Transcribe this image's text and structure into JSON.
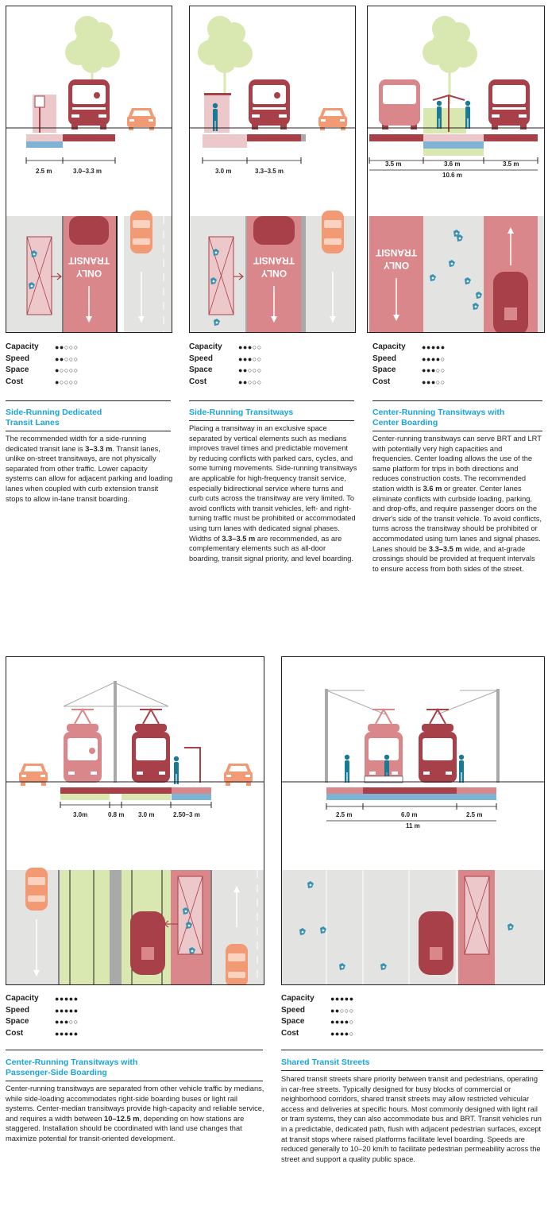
{
  "rating_labels": {
    "capacity": "Capacity",
    "speed": "Speed",
    "space": "Space",
    "cost": "Cost"
  },
  "sections": [
    {
      "title_line1": "Side-Running Dedicated",
      "title_line2": "Transit Lanes",
      "ratings": {
        "capacity": "●●○○○",
        "speed": "●●○○○",
        "space": "●○○○○",
        "cost": "●○○○○"
      },
      "dimensions": [
        "2.5 m",
        "3.0–3.3 m"
      ],
      "body_parts": [
        "The recommended width for a side-running dedicated transit lane is ",
        "3–3.3 m",
        ". Transit lanes, unlike on-street transitways, are not physically separated from other traffic. Lower capacity systems can allow for adjacent parking and loading lanes when coupled with curb extension transit stops to allow in-lane transit boarding."
      ],
      "lane_marking_line1": "TRANSIT",
      "lane_marking_line2": "ONLY"
    },
    {
      "title_line1": "Side-Running Transitways",
      "ratings": {
        "capacity": "●●●○○",
        "speed": "●●●○○",
        "space": "●●○○○",
        "cost": "●●○○○"
      },
      "dimensions": [
        "3.0 m",
        "3.3–3.5 m"
      ],
      "body_parts": [
        "Placing a transitway in an exclusive space separated by vertical elements such as medians improves travel times and predictable movement by reducing conflicts with parked cars, cycles, and some turning movements. Side-running transitways are applicable for high-frequency transit service, especially bidirectional service where turns and curb cuts across the transitway are very limited. To avoid conflicts with transit vehicles, left- and right-turning traffic must be prohibited or accommodated using turn lanes with dedicated signal phases. Widths of ",
        "3.3–3.5 m",
        " are recommended, as are complementary elements such as all-door boarding, transit signal priority, and level boarding."
      ],
      "lane_marking_line1": "TRANSIT",
      "lane_marking_line2": "ONLY"
    },
    {
      "title_line1": "Center-Running Transitways with",
      "title_line2": "Center Boarding",
      "ratings": {
        "capacity": "●●●●●",
        "speed": "●●●●○",
        "space": "●●●○○",
        "cost": "●●●○○"
      },
      "dimensions": [
        "3.5 m",
        "3.6 m",
        "3.5 m",
        "10.6 m"
      ],
      "body_parts": [
        "Center-running transitways can serve BRT and LRT with potentially very high capacities and frequencies. Center loading allows the use of the same platform for trips in both directions and reduces construction costs. The recommended station width is ",
        "3.6 m",
        " or greater. Center lanes eliminate conflicts with curbside loading, parking, and drop-offs, and require passenger doors on the driver's side of the transit vehicle. To avoid conflicts, turns across the transitway should be prohibited or accommodated using turn lanes and signal phases. Lanes should be ",
        "3.3–3.5 m",
        " wide, and at-grade crossings should be provided at frequent intervals to ensure access from both sides of the street."
      ],
      "lane_marking_line1": "TRANSIT",
      "lane_marking_line2": "ONLY"
    },
    {
      "title_line1": "Center-Running Transitways with",
      "title_line2": "Passenger-Side Boarding",
      "ratings": {
        "capacity": "●●●●●",
        "speed": "●●●●●",
        "space": "●●●○○",
        "cost": "●●●●●"
      },
      "dimensions": [
        "3.0m",
        "0.8 m",
        "3.0 m",
        "2.50–3 m"
      ],
      "body_parts": [
        "Center-running transitways are separated from other vehicle traffic by medians, while side-loading accommodates right-side boarding buses or light rail systems. Center-median transitways provide high-capacity and reliable service, and requires a width between ",
        "10–12.5 m",
        ", depending on how stations are staggered. Installation should be coordinated with land use changes that maximize potential for transit-oriented development."
      ]
    },
    {
      "title_line1": "Shared Transit Streets",
      "ratings": {
        "capacity": "●●●●●",
        "speed": "●●○○○",
        "space": "●●●●○",
        "cost": "●●●●○"
      },
      "dimensions": [
        "2.5 m",
        "6.0 m",
        "2.5 m",
        "11 m"
      ],
      "body_parts": [
        "Shared transit streets share priority between transit and pedestrians, operating in car-free streets. Typically designed for busy blocks of commercial or neighborhood corridors, shared transit streets may allow restricted vehicular access and deliveries at specific hours. Most commonly designed with light rail or tram systems, they can also accommodate bus and BRT. Transit vehicles run in a predictable, dedicated path, flush with adjacent pedestrian surfaces, except at transit stops where raised platforms facilitate level boarding. Speeds are reduced generally to 10–20 km/h to facilitate pedestrian permeability across the street and support a quality public space."
      ]
    }
  ],
  "colors": {
    "transit_red": "#a8404a",
    "transit_pink": "#d9878b",
    "light_pink": "#ecc8ca",
    "blue": "#7eb3d6",
    "green_light": "#d8e8b0",
    "car_orange": "#f29a73",
    "person_teal": "#1b7a93",
    "road_gray": "#e3e4e2",
    "title_blue": "#1ba3d9"
  }
}
